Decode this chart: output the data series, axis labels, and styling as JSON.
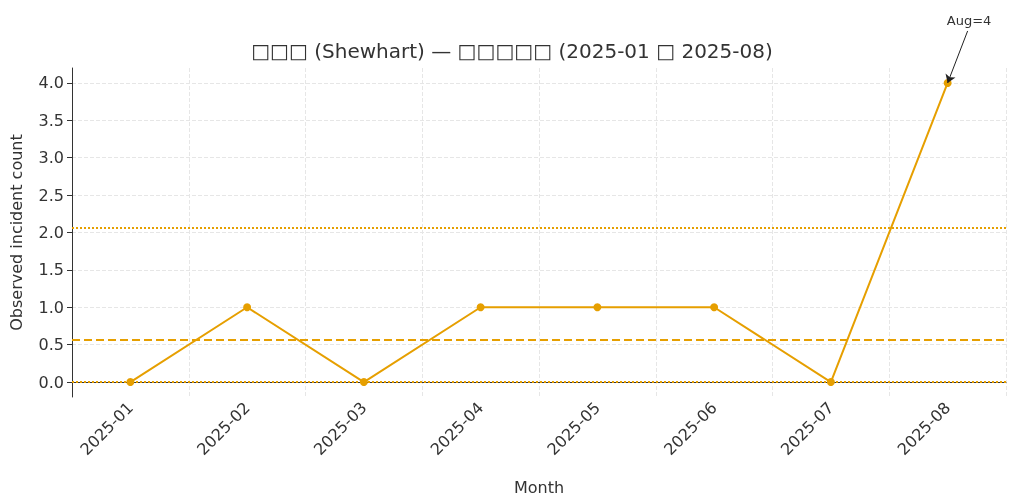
{
  "chart_data": {
    "type": "line",
    "title": "□□□ (Shewhart) — □□□□□ (2025-01 □ 2025-08)",
    "xlabel": "Month",
    "ylabel": "Observed incident count",
    "categories": [
      "2025-01",
      "2025-02",
      "2025-03",
      "2025-04",
      "2025-05",
      "2025-06",
      "2025-07",
      "2025-08"
    ],
    "series": [
      {
        "color": "#e69f00",
        "values": [
          0,
          1,
          0,
          1,
          1,
          1,
          0,
          4
        ]
      }
    ],
    "ylim": [
      -0.2,
      4.2
    ],
    "yticks": [
      {
        "value": 0,
        "label": "0.0"
      },
      0.5,
      {
        "value": 1,
        "label": "1.0"
      },
      1.5,
      {
        "value": 2,
        "label": "2.0"
      },
      2.5,
      {
        "value": 3,
        "label": "3.0"
      },
      3.5,
      {
        "value": 4,
        "label": "4.0"
      }
    ],
    "ref_lines": [
      {
        "axis": "y",
        "value": 0.57,
        "color": "#e69f00",
        "line_style": "dashed"
      },
      {
        "axis": "y",
        "value": 2.06,
        "color": "#e69f00",
        "line_style": "dotted"
      },
      {
        "axis": "y",
        "value": 0,
        "color": "#e69f00",
        "line_style": "dotted"
      }
    ],
    "annotations": [
      {
        "text": "Aug=4",
        "x": "2025-08",
        "y": 4
      }
    ],
    "grid": true,
    "marker": "circle",
    "line_style": "solid"
  }
}
